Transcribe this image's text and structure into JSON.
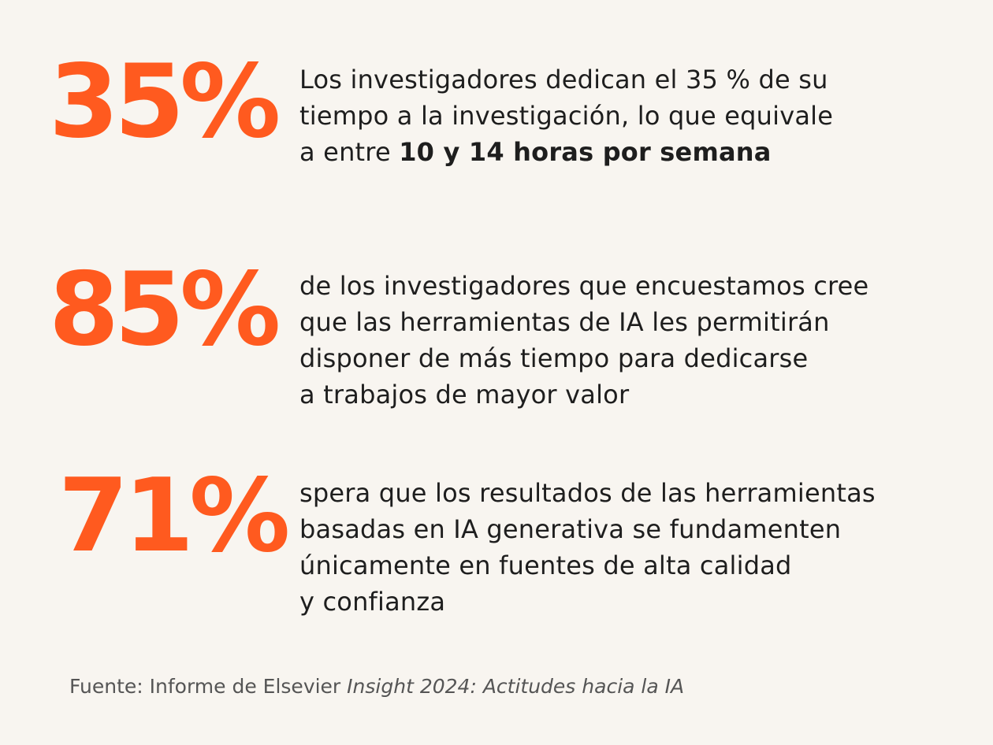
{
  "colors": {
    "background": "#f8f5f0",
    "accent": "#ff5a1f",
    "text": "#1e1e1e",
    "footer_text": "#555555"
  },
  "stats": [
    {
      "value": "35%",
      "lines": [
        {
          "text": "Los investigadores dedican el 35 % de su"
        },
        {
          "text": "tiempo a la investigación, lo que equivale"
        },
        {
          "text": "a entre ",
          "bold": "10 y 14 horas por semana"
        }
      ]
    },
    {
      "value": "85%",
      "lines": [
        {
          "text": "de los investigadores que encuestamos cree"
        },
        {
          "text": "que las herramientas de IA les permitirán"
        },
        {
          "text": "disponer de más tiempo para dedicarse"
        },
        {
          "text": "a trabajos de mayor valor"
        }
      ]
    },
    {
      "value": "71%",
      "lines": [
        {
          "text": "spera que los resultados de las herramientas"
        },
        {
          "text": "basadas en IA generativa se fundamenten"
        },
        {
          "text": "únicamente en fuentes de alta calidad"
        },
        {
          "text": "y confianza"
        }
      ]
    }
  ],
  "footer": {
    "prefix": "Fuente: Informe de Elsevier ",
    "italic": "Insight 2024: Actitudes hacia la IA"
  }
}
